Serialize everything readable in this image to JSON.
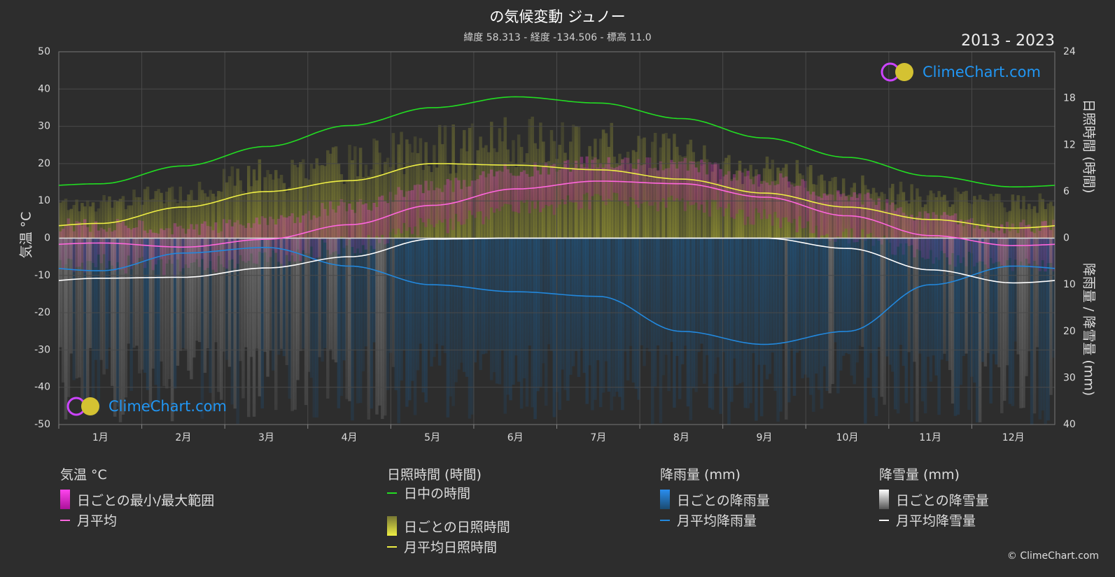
{
  "title": "の気候変動 ジュノー",
  "subtitle": "緯度 58.313 - 経度 -134.506 - 標高 11.0",
  "period": "2013 - 2023",
  "logo_text": "ClimeChart.com",
  "copyright": "© ClimeChart.com",
  "axes": {
    "left_title": "気温 °C",
    "right_top_title": "日照時間 (時間)",
    "right_bottom_title": "降雨量 / 降雪量 (mm)"
  },
  "legend": {
    "temp": {
      "heading": "気温 °C",
      "range": "日ごとの最小/最大範囲",
      "avg": "月平均"
    },
    "sun": {
      "heading": "日照時間 (時間)",
      "daylight": "日中の時間",
      "daily": "日ごとの日照時間",
      "avg": "月平均日照時間"
    },
    "rain": {
      "heading": "降雨量 (mm)",
      "daily": "日ごとの降雨量",
      "avg": "月平均降雨量"
    },
    "snow": {
      "heading": "降雪量 (mm)",
      "daily": "日ごとの降雪量",
      "avg": "月平均降雪量"
    }
  },
  "colors": {
    "background": "#2d2d2d",
    "daylight": "#22dd22",
    "sunshine": "#eeee44",
    "sunshine_band": "#b0b030",
    "temp_avg": "#ff66dd",
    "temp_range": "#cc33aa",
    "rain": "#2288dd",
    "rain_band": "#1e5a8a",
    "snow": "#ffffff",
    "snow_band": "#8a8a8a",
    "grid": "#4a4a4a",
    "logo": "#2196f3"
  },
  "chart_data": {
    "type": "line",
    "categories": [
      "1月",
      "2月",
      "3月",
      "4月",
      "5月",
      "6月",
      "7月",
      "8月",
      "9月",
      "10月",
      "11月",
      "12月"
    ],
    "temp_axis": {
      "min": -50,
      "max": 50,
      "ticks": [
        50,
        40,
        30,
        20,
        10,
        0,
        -10,
        -20,
        -30,
        -40,
        -50
      ]
    },
    "sun_axis": {
      "min": 0,
      "max": 24,
      "ticks": [
        24,
        18,
        12,
        6,
        0
      ]
    },
    "precip_axis": {
      "min": 0,
      "max": 40,
      "ticks": [
        0,
        10,
        20,
        30,
        40
      ]
    },
    "series": [
      {
        "name": "日中の時間",
        "axis": "sun",
        "values": [
          7.0,
          9.3,
          11.8,
          14.5,
          16.8,
          18.2,
          17.4,
          15.4,
          12.9,
          10.4,
          8.0,
          6.6
        ]
      },
      {
        "name": "月平均日照時間",
        "axis": "sun",
        "values": [
          1.9,
          4.0,
          6.0,
          7.4,
          9.6,
          9.4,
          8.8,
          7.6,
          5.8,
          4.0,
          2.4,
          1.3
        ]
      },
      {
        "name": "月平均",
        "axis": "temp",
        "values": [
          -1.3,
          -2.4,
          -0.3,
          3.6,
          8.8,
          13.2,
          15.3,
          14.6,
          11.0,
          6.0,
          0.7,
          -2.0
        ]
      },
      {
        "name": "月平均降雨量",
        "axis": "precip",
        "values": [
          7.0,
          3.2,
          2.0,
          6.0,
          10.0,
          11.5,
          12.5,
          20.0,
          22.8,
          20.0,
          10.0,
          6.0
        ]
      },
      {
        "name": "月平均降雪量",
        "axis": "precip",
        "values": [
          8.6,
          8.4,
          6.4,
          4.0,
          0.2,
          0.0,
          0.0,
          0.0,
          0.0,
          2.2,
          6.8,
          9.6
        ]
      }
    ],
    "daily_sunshine_max_hours": 15.9,
    "legend_position": "bottom",
    "grid": true
  }
}
